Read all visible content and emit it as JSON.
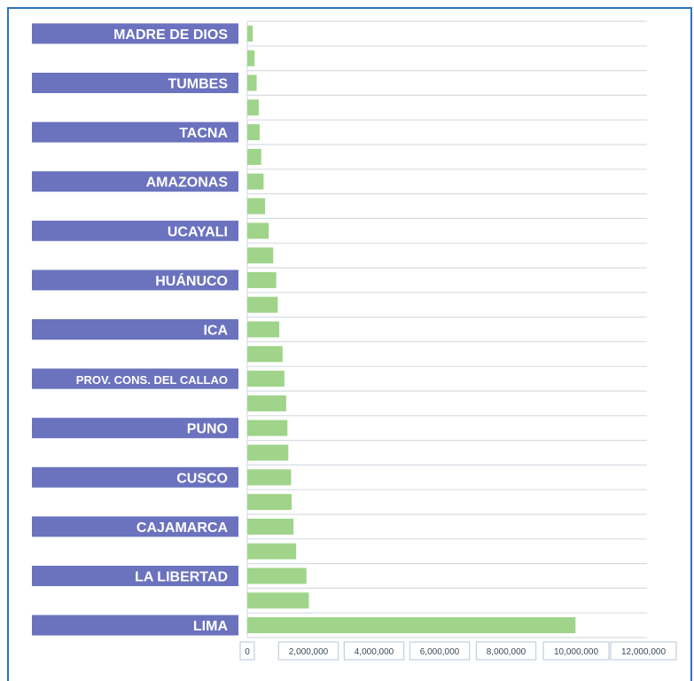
{
  "chart_data": {
    "type": "bar",
    "orientation": "horizontal",
    "categories": [
      "MADRE DE DIOS",
      "",
      "TUMBES",
      "",
      "TACNA",
      "",
      "AMAZONAS",
      "",
      "UCAYALI",
      "",
      "HUÁNUCO",
      "",
      "ICA",
      "",
      "PROV. CONS. DEL CALLAO",
      "",
      "PUNO",
      "",
      "CUSCO",
      "",
      "CAJAMARCA",
      "",
      "LA LIBERTAD",
      "",
      "LIMA"
    ],
    "values": [
      180000,
      240000,
      310000,
      380000,
      410000,
      460000,
      540000,
      590000,
      710000,
      860000,
      960000,
      1010000,
      1060000,
      1170000,
      1230000,
      1290000,
      1330000,
      1360000,
      1450000,
      1470000,
      1530000,
      1620000,
      1960000,
      2040000,
      10880000
    ],
    "xlim": [
      0,
      13250000
    ],
    "xticks": [
      "0",
      "2,000,000",
      "4,000,000",
      "6,000,000",
      "8,000,000",
      "10,000,000",
      "12,000,000"
    ],
    "grid": true,
    "colors": {
      "bar": "#9fd48a",
      "label_bg": "#6b72be",
      "grid": "#d8dde4",
      "frame": "#2f74c0",
      "tick_border": "#b9c6d6"
    }
  }
}
